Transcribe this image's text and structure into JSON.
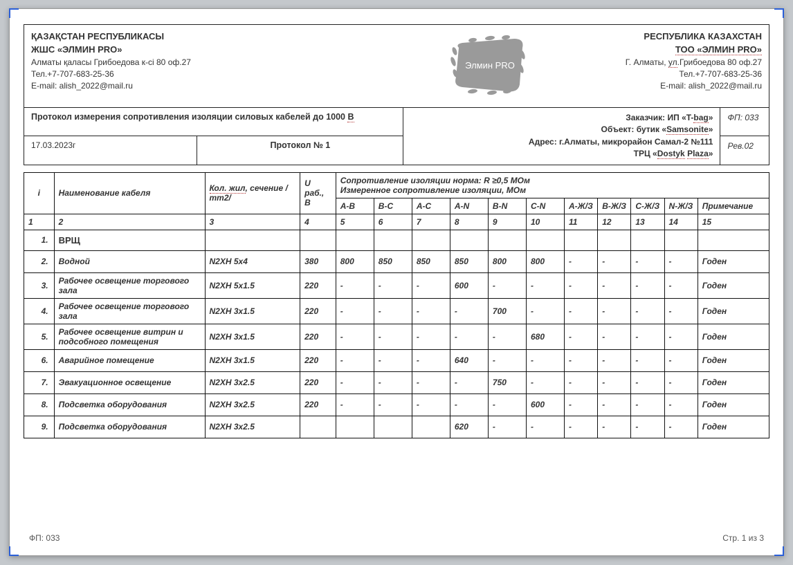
{
  "header": {
    "left": {
      "l1": "ҚАЗАҚСТАН РЕСПУБЛИКАСЫ",
      "l2": "ЖШС «ЭЛМИН PRO»",
      "l3": "Алматы қаласы Грибоедова к-сі 80 оф.27",
      "l4": "Тел.+7-707-683-25-36",
      "l5": "E-mail: alish_2022@mail.ru"
    },
    "right": {
      "l1": "РЕСПУБЛИКА КАЗАХСТАН",
      "l2": "ТОО «ЭЛМИН PRO»",
      "l3": "Г. Алматы, ул.Грибоедова 80 оф.27",
      "l4": "Тел.+7-707-683-25-36",
      "l5": "E-mail: alish_2022@mail.ru"
    },
    "logo_text": "Элмин PRO"
  },
  "protocol": {
    "title": "Протокол измерения сопротивления изоляции силовых кабелей до 1000 В",
    "date": "17.03.2023г",
    "number": "Протокол № 1",
    "client": "Заказчик: ИП «T-bag»",
    "object": "Объект: бутик «Samsonite»",
    "address": "Адрес: г.Алматы, микрорайон Самал-2 №111",
    "mall": "ТРЦ «Dostyk Plaza»",
    "fp": "ФП: 033",
    "rev": "Рев.02"
  },
  "table": {
    "head": {
      "c1": "і",
      "c2": "Наименование кабеля",
      "c3": "Кол. жил, сечение /тт2/",
      "c4": "U раб., В",
      "norma": "Сопротивление изоляции норма: R ≥0,5 МОм",
      "measured": "Измеренное сопротивление изоляции, МОм",
      "cols": [
        "A-B",
        "B-C",
        "A-C",
        "A-N",
        "B-N",
        "C-N",
        "А-Ж/З",
        "В-Ж/З",
        "С-Ж/З",
        "N-Ж/З",
        "Примечание"
      ],
      "nums": [
        "1",
        "2",
        "3",
        "4",
        "5",
        "6",
        "7",
        "8",
        "9",
        "10",
        "11",
        "12",
        "13",
        "14",
        "15"
      ]
    },
    "rows": [
      {
        "n": "1.",
        "name": "ВРЩ",
        "spec": "",
        "u": "",
        "v": [
          "",
          "",
          "",
          "",
          "",
          "",
          "",
          "",
          "",
          ""
        ],
        "note": "",
        "section": true
      },
      {
        "n": "2.",
        "name": "Водной",
        "spec": "N2XH 5х4",
        "u": "380",
        "v": [
          "800",
          "850",
          "850",
          "850",
          "800",
          "800",
          "-",
          "-",
          "-",
          "-"
        ],
        "note": "Годен"
      },
      {
        "n": "3.",
        "name": "Рабочее освещение торгового зала",
        "spec": "N2XH 5х1.5",
        "u": "220",
        "v": [
          "-",
          "-",
          "-",
          "600",
          "-",
          "-",
          "-",
          "-",
          "-",
          "-"
        ],
        "note": "Годен"
      },
      {
        "n": "4.",
        "name": "Рабочее освещение торгового зала",
        "spec": "N2XH 3х1.5",
        "u": "220",
        "v": [
          "-",
          "-",
          "-",
          "-",
          "700",
          "-",
          "-",
          "-",
          "-",
          "-"
        ],
        "note": "Годен"
      },
      {
        "n": "5.",
        "name": "Рабочее освещение витрин и подсобного помещения",
        "spec": "N2XH 3х1.5",
        "u": "220",
        "v": [
          "-",
          "-",
          "-",
          "-",
          "-",
          "680",
          "-",
          "-",
          "-",
          "-"
        ],
        "note": "Годен"
      },
      {
        "n": "6.",
        "name": "Аварийное помещение",
        "spec": "N2XH 3х1.5",
        "u": "220",
        "v": [
          "-",
          "-",
          "-",
          "640",
          "-",
          "-",
          "-",
          "-",
          "-",
          "-"
        ],
        "note": "Годен"
      },
      {
        "n": "7.",
        "name": "Эвакуационное освещение",
        "spec": "N2XH 3х2.5",
        "u": "220",
        "v": [
          "-",
          "-",
          "-",
          "-",
          "750",
          "-",
          "-",
          "-",
          "-",
          "-"
        ],
        "note": "Годен"
      },
      {
        "n": "8.",
        "name": "Подсветка оборудования",
        "spec": "N2XH 3х2.5",
        "u": "220",
        "v": [
          "-",
          "-",
          "-",
          "-",
          "-",
          "600",
          "-",
          "-",
          "-",
          "-"
        ],
        "note": "Годен"
      },
      {
        "n": "9.",
        "name": "Подсветка оборудования",
        "spec": "N2XH 3х2.5",
        "u": "",
        "v": [
          "",
          "",
          "",
          "620",
          "-",
          "-",
          "-",
          "-",
          "-",
          "-"
        ],
        "note": "Годен"
      }
    ]
  },
  "footer": {
    "left": "ФП: 033",
    "right": "Стр. 1 из 3"
  }
}
